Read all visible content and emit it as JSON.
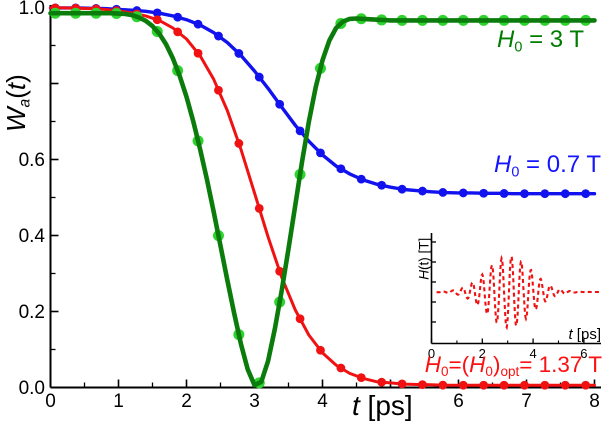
{
  "figure": {
    "x_title": {
      "symbol": "t",
      "rest": " [ps]"
    },
    "y_title": {
      "symbol": "W",
      "sub": "a",
      "open": "(",
      "t": "t",
      "close": ")"
    },
    "legend_green": {
      "symbol": "H",
      "sub": "0",
      "rest": "= 3 T"
    },
    "legend_blue": {
      "symbol": "H",
      "sub": "0",
      "rest": "= 0.7 T"
    },
    "annotation_red": {
      "p1": "H",
      "s1": "0",
      "p2": "=(",
      "p3": "H",
      "s2": "0",
      "p4": ")",
      "s3": "opt",
      "p5": "= 1.37 T"
    },
    "inset_x_title": {
      "symbol": "t",
      "rest": " [ps]"
    },
    "inset_y_title": {
      "symbol": "H",
      "rest": "(t) [T]"
    }
  },
  "colors": {
    "green_line": "#0b7c0b",
    "green_marker": "#2fd32f",
    "green_text": "#007c00",
    "blue_line": "#1212ef",
    "blue_marker": "#1212ef",
    "blue_text": "#1515ff",
    "red_line": "#f01212",
    "red_marker": "#f01212",
    "red_text": "#fb1111",
    "axis": "#000000"
  },
  "chart_data": {
    "type": "line",
    "title": "",
    "xlabel": "t [ps]",
    "ylabel": "W_a(t)",
    "xlim": [
      0,
      8
    ],
    "ylim": [
      0.0,
      1.0
    ],
    "grid": false,
    "x_ticks": {
      "values": [
        0,
        1,
        2,
        3,
        4,
        5,
        6,
        7,
        8
      ],
      "labels": [
        "0",
        "1",
        "2",
        "3",
        "4",
        "",
        "6",
        "7",
        "8"
      ],
      "minor": [
        0.5,
        1.5,
        2.5,
        3.5,
        4.5,
        5.5,
        6.5,
        7.5
      ]
    },
    "y_ticks": {
      "values": [
        0.0,
        0.2,
        0.4,
        0.6,
        0.8,
        1.0
      ],
      "labels": [
        "0.0",
        "0.2",
        "0.4",
        "0.6",
        "",
        "1.0"
      ],
      "minor": [
        0.1,
        0.3,
        0.5,
        0.7,
        0.9
      ]
    },
    "marker_start_ps": 0.07,
    "marker_step_ps": 0.3,
    "series": [
      {
        "name": "H0 = 0.7 T",
        "t_start": 0,
        "t_step": 0.2,
        "line_width": 3.4,
        "marker_r": 4.4,
        "values": [
          0.999,
          0.999,
          0.999,
          0.998,
          0.997,
          0.995,
          0.993,
          0.99,
          0.985,
          0.978,
          0.968,
          0.954,
          0.934,
          0.908,
          0.874,
          0.833,
          0.787,
          0.738,
          0.69,
          0.648,
          0.612,
          0.583,
          0.562,
          0.546,
          0.535,
          0.527,
          0.521,
          0.518,
          0.515,
          0.513,
          0.512,
          0.512,
          0.511,
          0.511,
          0.51,
          0.51,
          0.51,
          0.51,
          0.51,
          0.51,
          0.51
        ]
      },
      {
        "name": "H0 = (H0)opt = 1.37 T",
        "t_start": 0,
        "t_step": 0.2,
        "line_width": 3.0,
        "marker_r": 4.4,
        "values": [
          0.999,
          0.999,
          0.998,
          0.997,
          0.995,
          0.991,
          0.986,
          0.978,
          0.966,
          0.946,
          0.917,
          0.873,
          0.811,
          0.729,
          0.627,
          0.512,
          0.396,
          0.29,
          0.204,
          0.138,
          0.091,
          0.059,
          0.037,
          0.024,
          0.015,
          0.012,
          0.009,
          0.008,
          0.007,
          0.006,
          0.006,
          0.006,
          0.006,
          0.006,
          0.006,
          0.006,
          0.006,
          0.006,
          0.006,
          0.006,
          0.006
        ]
      },
      {
        "name": "H0 = 3 T",
        "t_start": 0,
        "t_step": 0.1,
        "line_width": 4.6,
        "marker_r": 5.5,
        "values": [
          0.985,
          0.985,
          0.985,
          0.985,
          0.985,
          0.985,
          0.985,
          0.985,
          0.985,
          0.985,
          0.984,
          0.983,
          0.98,
          0.974,
          0.965,
          0.951,
          0.931,
          0.903,
          0.866,
          0.82,
          0.765,
          0.7,
          0.627,
          0.548,
          0.462,
          0.373,
          0.283,
          0.196,
          0.115,
          0.048,
          0.006,
          0.015,
          0.07,
          0.155,
          0.255,
          0.365,
          0.48,
          0.595,
          0.7,
          0.79,
          0.861,
          0.913,
          0.946,
          0.963,
          0.97,
          0.971,
          0.97,
          0.969,
          0.968,
          0.967,
          0.966,
          0.966,
          0.966,
          0.966,
          0.966,
          0.966,
          0.966,
          0.966,
          0.966,
          0.966,
          0.966,
          0.966,
          0.966,
          0.966,
          0.966,
          0.966,
          0.966,
          0.966,
          0.966,
          0.966,
          0.966,
          0.966,
          0.966,
          0.966,
          0.966,
          0.966,
          0.966,
          0.966,
          0.966,
          0.966,
          0.966
        ]
      }
    ],
    "inset": {
      "xlabel": "t [ps]",
      "ylabel": "H(t) [T]",
      "xlim": [
        0,
        6.7
      ],
      "x_ticks": {
        "values": [
          0,
          2,
          4,
          6
        ],
        "labels": [
          "0",
          "2",
          "4",
          "6"
        ],
        "minor": [
          1,
          3,
          5
        ]
      },
      "pulse": {
        "amplitude_T": 1.37,
        "center_ps": 3.05,
        "sigma_ps": 1.25,
        "freq_per_ps": 2.6,
        "dash": [
          4,
          3.2
        ],
        "line_width": 2.1
      }
    }
  }
}
